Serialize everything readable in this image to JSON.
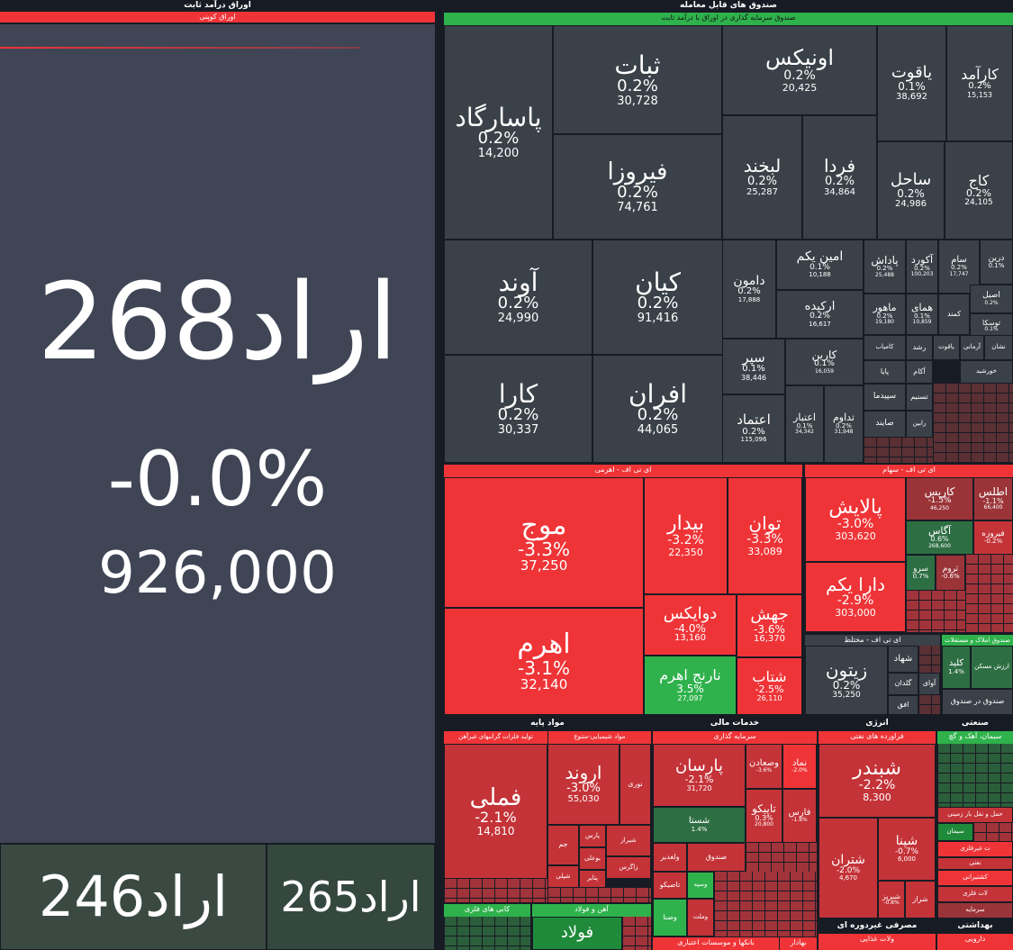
{
  "fixed_income": {
    "header": "اوراق درآمد ثابت",
    "sub_header": "اوراق کوپنی",
    "main": {
      "name": "اراد268",
      "change": "-0.0%",
      "volume": "926,000"
    },
    "b1": {
      "name": "اراد246"
    },
    "b2": {
      "name": "اراد265"
    }
  },
  "etf": {
    "header": "صندوق های قابل معامله",
    "sub_header": "صندوق سرمایه گذاری در اوراق با درآمد ثابت",
    "tiles": [
      {
        "name": "ثبات",
        "change": "0.2%",
        "volume": "30,728"
      },
      {
        "name": "اونیکس",
        "change": "0.2%",
        "volume": "20,425"
      },
      {
        "name": "یاقوت",
        "change": "0.1%",
        "volume": "38,692"
      },
      {
        "name": "کارآمد",
        "change": "0.2%",
        "volume": "15,153"
      },
      {
        "name": "پاسارگاد",
        "change": "0.2%",
        "volume": "14,200"
      },
      {
        "name": "فیروزا",
        "change": "0.2%",
        "volume": "74,761"
      },
      {
        "name": "لبخند",
        "change": "0.2%",
        "volume": "25,287"
      },
      {
        "name": "فردا",
        "change": "0.2%",
        "volume": "34,864"
      },
      {
        "name": "ساحل",
        "change": "0.2%",
        "volume": "24,986"
      },
      {
        "name": "کاج",
        "change": "0.2%",
        "volume": "24,105"
      },
      {
        "name": "آوند",
        "change": "0.2%",
        "volume": "24,990"
      },
      {
        "name": "کیان",
        "change": "0.2%",
        "volume": "91,416"
      },
      {
        "name": "کارا",
        "change": "0.2%",
        "volume": "30,337"
      },
      {
        "name": "افران",
        "change": "0.2%",
        "volume": "44,065"
      },
      {
        "name": "دامون",
        "change": "0.2%",
        "volume": "17,888"
      },
      {
        "name": "امین یکم",
        "change": "0.1%",
        "volume": "10,188"
      },
      {
        "name": "ارکیده",
        "change": "0.2%",
        "volume": "16,617"
      },
      {
        "name": "سپر",
        "change": "0.1%",
        "volume": "38,446"
      },
      {
        "name": "کارین",
        "change": "0.1%",
        "volume": "16,059"
      },
      {
        "name": "اعتماد",
        "change": "0.2%",
        "volume": "115,096"
      },
      {
        "name": "اعتبار",
        "change": "0.1%",
        "volume": "34,342"
      },
      {
        "name": "تداوم",
        "change": "0.2%",
        "volume": "31,948"
      },
      {
        "name": "پاداش",
        "change": "0.2%",
        "volume": "25,488"
      },
      {
        "name": "آکورد",
        "change": "0.2%",
        "volume": "100,203"
      },
      {
        "name": "سام",
        "change": "0.2%",
        "volume": "17,747"
      },
      {
        "name": "درین",
        "change": "0.1%",
        "volume": ""
      },
      {
        "name": "ماهور",
        "change": "0.2%",
        "volume": "19,180"
      },
      {
        "name": "همای",
        "change": "0.1%",
        "volume": "10,859"
      },
      {
        "name": "اصیل",
        "change": "0.2%",
        "volume": ""
      },
      {
        "name": "توسکا",
        "change": "0.1%",
        "volume": ""
      },
      {
        "name": "کمند",
        "change": "",
        "volume": ""
      },
      {
        "name": "کامیاب",
        "change": "",
        "volume": ""
      },
      {
        "name": "رشد",
        "change": "",
        "volume": ""
      },
      {
        "name": "یاقوت",
        "change": "",
        "volume": ""
      },
      {
        "name": "پایا",
        "change": "",
        "volume": ""
      },
      {
        "name": "آکام",
        "change": "",
        "volume": ""
      },
      {
        "name": "سپیدما",
        "change": "",
        "volume": ""
      },
      {
        "name": "تسنیم",
        "change": "",
        "volume": ""
      },
      {
        "name": "صایند",
        "change": "",
        "volume": ""
      },
      {
        "name": "رابین",
        "change": "",
        "volume": ""
      },
      {
        "name": "آرمانی",
        "change": "",
        "volume": ""
      },
      {
        "name": "نشان",
        "change": "",
        "volume": ""
      },
      {
        "name": "خورشید",
        "change": "",
        "volume": ""
      }
    ]
  },
  "lev": {
    "header": "ای تی اف - اهرمی",
    "tiles": [
      {
        "name": "موج",
        "change": "-3.3%",
        "volume": "37,250"
      },
      {
        "name": "بیدار",
        "change": "-3.2%",
        "volume": "22,350"
      },
      {
        "name": "توان",
        "change": "-3.3%",
        "volume": "33,089"
      },
      {
        "name": "اهرم",
        "change": "-3.1%",
        "volume": "32,140"
      },
      {
        "name": "دوایکس",
        "change": "-4.0%",
        "volume": "13,160"
      },
      {
        "name": "جهش",
        "change": "-3.6%",
        "volume": "16,370"
      },
      {
        "name": "نارنج اهرم",
        "change": "3.5%",
        "volume": "27,097"
      },
      {
        "name": "شتاب",
        "change": "-2.5%",
        "volume": "26,110"
      }
    ]
  },
  "stock_etf": {
    "header": "ای تی اف - سهام",
    "tiles": [
      {
        "name": "پالایش",
        "change": "-3.0%",
        "volume": "303,620"
      },
      {
        "name": "کاریس",
        "change": "-1.5%",
        "volume": "46,250"
      },
      {
        "name": "اطلس",
        "change": "-1.1%",
        "volume": "66,400"
      },
      {
        "name": "آگاس",
        "change": "0.6%",
        "volume": "268,600"
      },
      {
        "name": "فیروزه",
        "change": "-0.2%",
        "volume": ""
      },
      {
        "name": "دارا یکم",
        "change": "-2.9%",
        "volume": "303,000"
      },
      {
        "name": "سرو",
        "change": "0.7%",
        "volume": ""
      },
      {
        "name": "ثروم",
        "change": "-0.6%",
        "volume": ""
      }
    ]
  },
  "mixed": {
    "header": "ای تی اف - مختلط",
    "tiles": [
      {
        "name": "زیتون",
        "change": "0.2%",
        "volume": "35,250"
      },
      {
        "name": "شهاد",
        "change": "",
        "volume": ""
      },
      {
        "name": "گلدان",
        "change": "",
        "volume": ""
      },
      {
        "name": "آوای",
        "change": "",
        "volume": ""
      },
      {
        "name": "افق",
        "change": "",
        "volume": ""
      }
    ]
  },
  "right_small": {
    "t1": "صندوق املاک و مستغلات",
    "t2": "کلید",
    "t2c": "1.4%",
    "t3": "ارزش مسکن",
    "t4": "صندوق در صندوق"
  },
  "base": {
    "header": "مواد پایه",
    "sub1": "تولید فلزات گرانبهای غیرآهن",
    "sub2": "مواد شیمیایی-متنوع",
    "tiles": [
      {
        "name": "فملی",
        "change": "-2.1%",
        "volume": "14,810"
      },
      {
        "name": "اروند",
        "change": "-3.0%",
        "volume": "55,030"
      },
      {
        "name": "نوری",
        "change": "",
        "volume": ""
      },
      {
        "name": "پارس",
        "change": "",
        "volume": ""
      },
      {
        "name": "جم",
        "change": "",
        "volume": ""
      },
      {
        "name": "بوعلی",
        "change": "",
        "volume": ""
      },
      {
        "name": "شیراز",
        "change": "",
        "volume": ""
      },
      {
        "name": "زاگرس",
        "change": "",
        "volume": ""
      },
      {
        "name": "شپلی",
        "change": "",
        "volume": ""
      },
      {
        "name": "پتایر",
        "change": "",
        "volume": ""
      }
    ],
    "b1": "کانی های فلزی",
    "b2": "آهن و فولاد",
    "b3": "فولاد"
  },
  "fin": {
    "header": "خدمات مالی",
    "sub1": "سرمایه گذاری",
    "tiles": [
      {
        "name": "پارسان",
        "change": "-2.1%",
        "volume": "31,720"
      },
      {
        "name": "وصعادن",
        "change": "-3.6%",
        "volume": ""
      },
      {
        "name": "نماد",
        "change": "-2.0%",
        "volume": ""
      },
      {
        "name": "شستا",
        "change": "1.4%",
        "volume": ""
      },
      {
        "name": "تاپیکو",
        "change": "0.3%",
        "volume": "20,800"
      },
      {
        "name": "فارس",
        "change": "-1.8%",
        "volume": ""
      },
      {
        "name": "ولغدیر",
        "change": "",
        "volume": ""
      },
      {
        "name": "صندوق",
        "change": "",
        "volume": ""
      },
      {
        "name": "تاصیکو",
        "change": "",
        "volume": ""
      },
      {
        "name": "وسپه",
        "change": "",
        "volume": ""
      },
      {
        "name": "وصنا",
        "change": "",
        "volume": ""
      },
      {
        "name": "وملت",
        "change": "",
        "volume": ""
      }
    ],
    "footer": "بانکها و موسسات اعتباری",
    "footer2": "بهادار"
  },
  "energy": {
    "header": "انرژی",
    "sub1": "فراورده های نفتی",
    "tiles": [
      {
        "name": "شبندر",
        "change": "-2.2%",
        "volume": "8,300"
      },
      {
        "name": "شپنا",
        "change": "-0.7%",
        "volume": "6,000"
      },
      {
        "name": "شتران",
        "change": "-2.0%",
        "volume": "4,670"
      },
      {
        "name": "شبریز",
        "change": "-0.8%",
        "volume": ""
      },
      {
        "name": "شراز",
        "change": "",
        "volume": ""
      }
    ],
    "footer": "مصرفی غیردوره ای",
    "footer2": "ولات غذایی"
  },
  "industry": {
    "header": "صنعتی",
    "sub1": "سیمان، آهک و گچ",
    "items": [
      "حمل و نقل بار زمینی",
      "سیمان",
      "ت غیرفلزی",
      "نعتی",
      "کشتیرانی",
      "لات فلزی",
      "سرمایه"
    ],
    "footer": "بهداشتی",
    "footer2": "دارویی"
  }
}
